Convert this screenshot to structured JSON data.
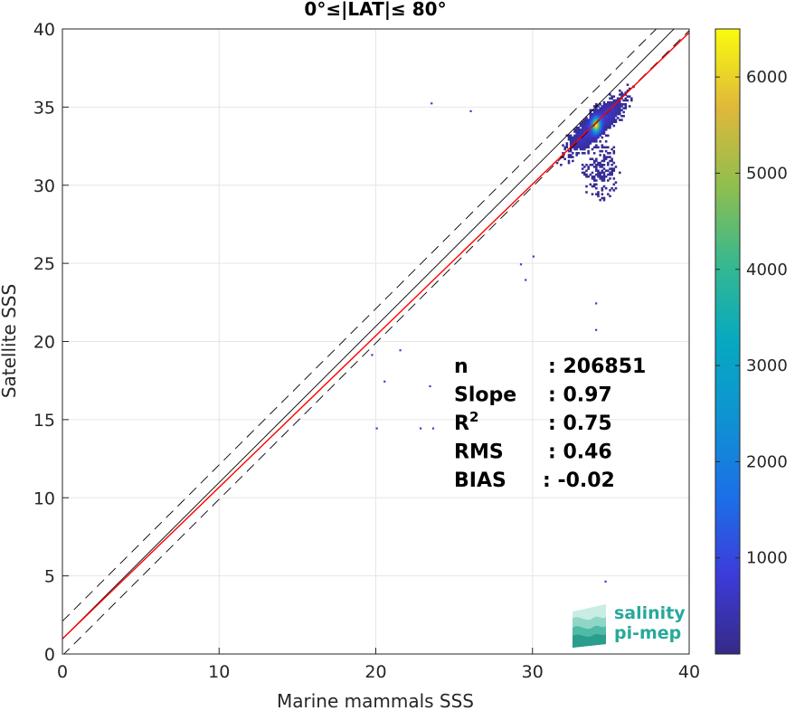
{
  "chart_data": {
    "type": "heatmap",
    "title": "0°≤|LAT|≤ 80°",
    "xlabel": "Marine mammals SSS",
    "ylabel": "Satellite SSS",
    "xlim": [
      0,
      40
    ],
    "ylim": [
      0,
      40
    ],
    "xticks": [
      "0",
      "10",
      "20",
      "30",
      "40"
    ],
    "yticks": [
      "0",
      "5",
      "10",
      "15",
      "20",
      "25",
      "30",
      "35",
      "40"
    ],
    "grid": true,
    "colorbar": {
      "range": [
        0,
        6500
      ],
      "ticks": [
        "1000",
        "2000",
        "3000",
        "4000",
        "5000",
        "6000"
      ],
      "colormap": "parula"
    },
    "lines": [
      {
        "kind": "identity",
        "slope": 1,
        "intercept": 0.97,
        "color": "#000000",
        "style": "solid"
      },
      {
        "kind": "upper-bound",
        "slope": 1,
        "intercept": 2.1,
        "color": "#000000",
        "style": "dashed"
      },
      {
        "kind": "lower-bound",
        "slope": 1,
        "intercept": -0.1,
        "color": "#000000",
        "style": "dashed"
      },
      {
        "kind": "fit",
        "slope": 0.97,
        "intercept": 0.97,
        "color": "#ff0000",
        "style": "solid"
      }
    ],
    "density_cluster": {
      "center": [
        34.0,
        33.8
      ],
      "peak_count": 6500,
      "extent_x": [
        31,
        37
      ],
      "extent_y": [
        29,
        37
      ]
    },
    "outliers": [
      [
        23.5,
        35.3
      ],
      [
        26.0,
        34.8
      ],
      [
        19.7,
        19.2
      ],
      [
        20.0,
        14.5
      ],
      [
        20.5,
        17.5
      ],
      [
        21.5,
        19.5
      ],
      [
        22.8,
        14.5
      ],
      [
        23.6,
        14.5
      ],
      [
        23.4,
        17.2
      ],
      [
        34.0,
        20.8
      ],
      [
        34.0,
        22.5
      ],
      [
        34.6,
        4.7
      ],
      [
        30.0,
        25.5
      ],
      [
        29.2,
        25.0
      ],
      [
        29.5,
        24.0
      ]
    ],
    "stats": [
      {
        "label": "n",
        "value": ": 206851"
      },
      {
        "label": "Slope",
        "value": ": 0.97"
      },
      {
        "label": "R",
        "sup": "2",
        "value": ": 0.75"
      },
      {
        "label": "RMS",
        "value": ": 0.46"
      },
      {
        "label": "BIAS",
        "value": ": -0.02"
      }
    ]
  },
  "logo": {
    "line1": "salinity",
    "line2": "pi-mep"
  }
}
